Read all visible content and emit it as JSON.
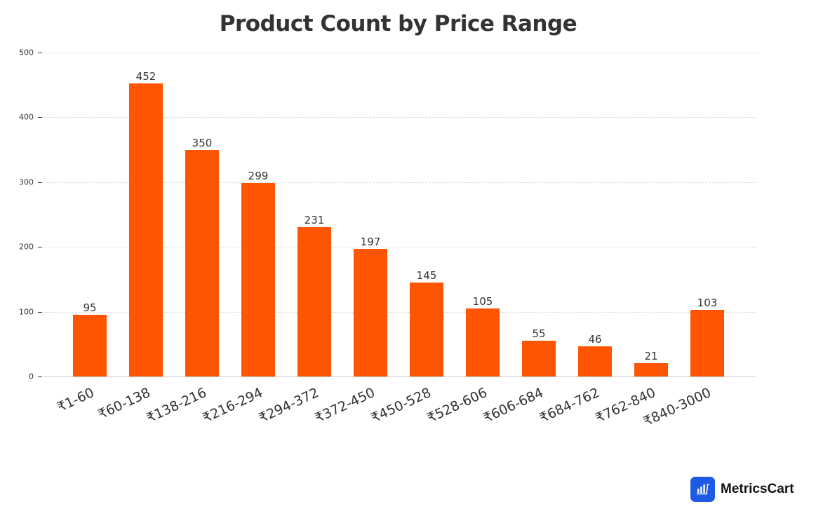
{
  "chart_data": {
    "type": "bar",
    "title": "Product Count by Price Range",
    "xlabel": "",
    "ylabel": "",
    "categories": [
      "₹1-60",
      "₹60-138",
      "₹138-216",
      "₹216-294",
      "₹294-372",
      "₹372-450",
      "₹450-528",
      "₹528-606",
      "₹606-684",
      "₹684-762",
      "₹762-840",
      "₹840-3000"
    ],
    "values": [
      95,
      452,
      350,
      299,
      231,
      197,
      145,
      105,
      55,
      46,
      21,
      103
    ],
    "ylim": [
      0,
      500
    ],
    "yticks": [
      0,
      100,
      200,
      300,
      400,
      500
    ],
    "grid": true,
    "bar_color": "#ff5500",
    "data_labels": true,
    "legend": null
  },
  "branding": {
    "logo_text": "MetricsCart",
    "logo_color": "#1f5ae6"
  }
}
